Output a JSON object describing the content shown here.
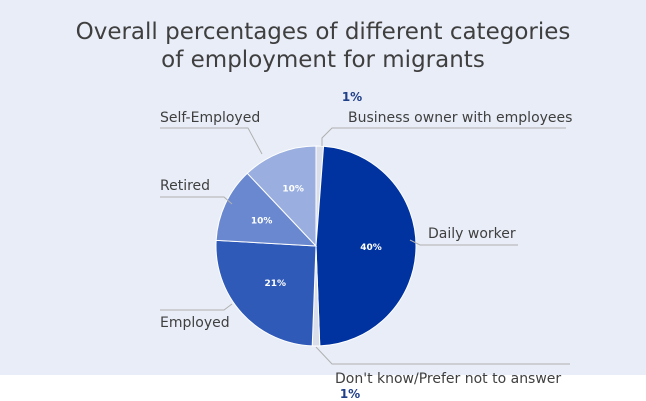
{
  "chart_data": {
    "type": "pie",
    "title": "Overall percentages of different categories of employment for migrants",
    "title_lines": [
      "Overall percentages of different categories",
      "of employment for migrants"
    ],
    "slices": [
      {
        "label": "Business owner with employees",
        "value": 1,
        "value_label": "1%",
        "color": "#1f3f8a"
      },
      {
        "label": "Daily worker",
        "value": 40,
        "value_label": "40%",
        "color": "#0033a0"
      },
      {
        "label": "Don't know/Prefer not to answer",
        "value": 1,
        "value_label": "1%",
        "color": "#1f3f8a"
      },
      {
        "label": "Employed",
        "value": 21,
        "value_label": "21%",
        "color": "#2f5ab8"
      },
      {
        "label": "Retired",
        "value": 10,
        "value_label": "10%",
        "color": "#6a88cf"
      },
      {
        "label": "Self-Employed",
        "value": 10,
        "value_label": "10%",
        "color": "#9aafdf"
      }
    ],
    "legend": "none (labels with leader lines)"
  },
  "colors": {
    "background": "#e8edf7",
    "title_text": "#3f3f3f",
    "category_text": "#3f3f3f",
    "inside_label_text": "#ffffff",
    "outside_value_text": "#1f3f8a",
    "leader_line": "#b0b0b0",
    "thin_slice": "#d9deea"
  }
}
